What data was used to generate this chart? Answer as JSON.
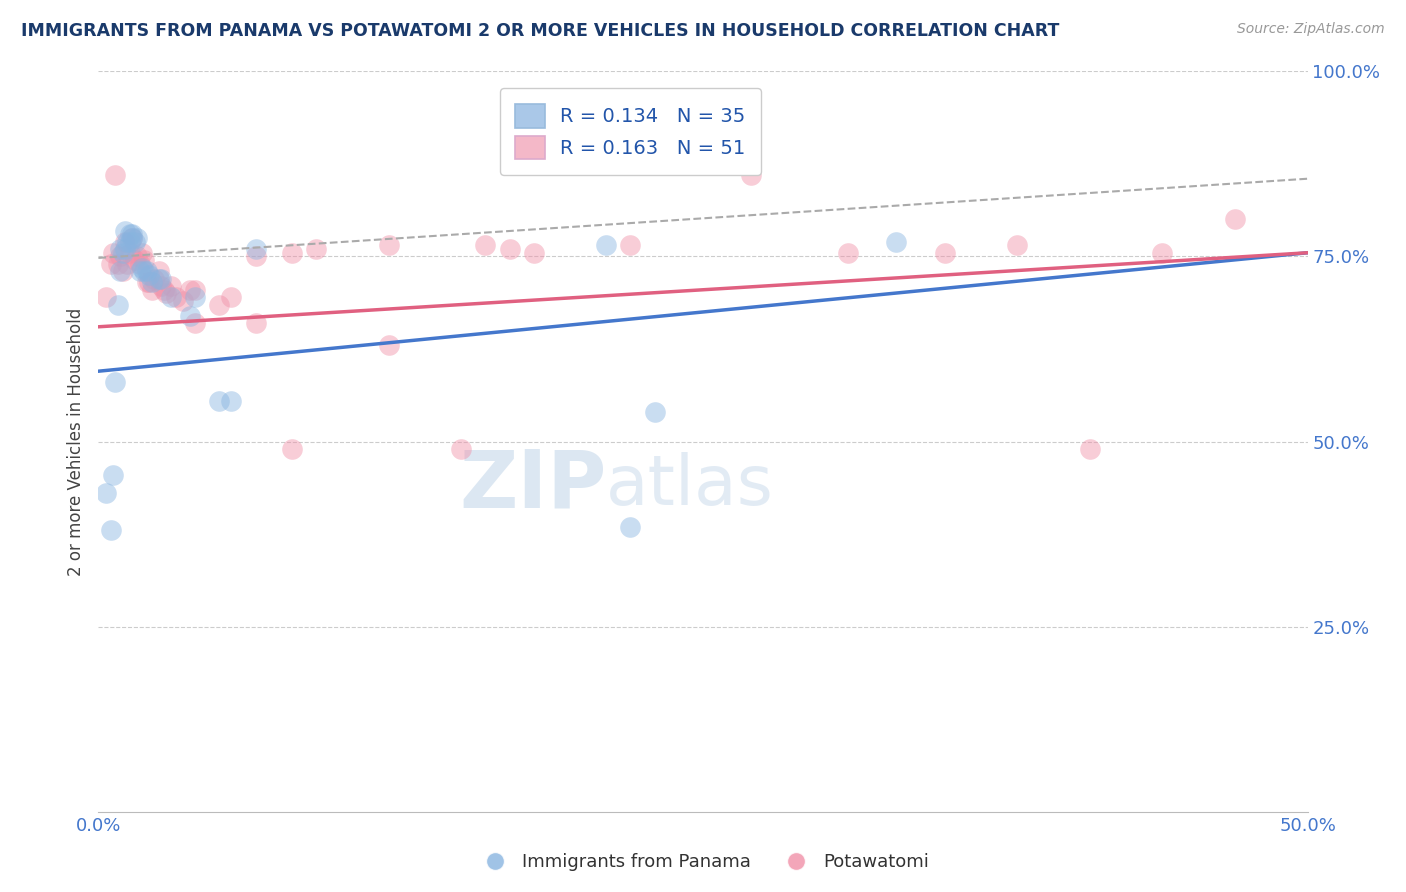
{
  "title": "IMMIGRANTS FROM PANAMA VS POTAWATOMI 2 OR MORE VEHICLES IN HOUSEHOLD CORRELATION CHART",
  "source": "Source: ZipAtlas.com",
  "ylabel": "2 or more Vehicles in Household",
  "xlabel_blue": "Immigrants from Panama",
  "xlabel_pink": "Potawatomi",
  "xlim": [
    0.0,
    0.5
  ],
  "ylim": [
    0.0,
    1.0
  ],
  "xticklabels_pos": [
    0.0,
    0.5
  ],
  "xticklabels": [
    "0.0%",
    "50.0%"
  ],
  "yticks": [
    0.25,
    0.5,
    0.75,
    1.0
  ],
  "yticklabels": [
    "25.0%",
    "50.0%",
    "75.0%",
    "100.0%"
  ],
  "r_blue": 0.134,
  "n_blue": 35,
  "r_pink": 0.163,
  "n_pink": 51,
  "legend_color_blue": "#aac8e8",
  "legend_color_pink": "#f4b8c8",
  "scatter_color_blue": "#88b4e0",
  "scatter_color_pink": "#f090a8",
  "line_color_blue": "#4477cc",
  "line_color_pink": "#e06080",
  "line_color_dash": "#aaaaaa",
  "watermark_zip": "ZIP",
  "watermark_atlas": "atlas",
  "blue_line_x0": 0.0,
  "blue_line_y0": 0.595,
  "blue_line_x1": 0.5,
  "blue_line_y1": 0.755,
  "pink_line_x0": 0.0,
  "pink_line_y0": 0.655,
  "pink_line_x1": 0.5,
  "pink_line_y1": 0.755,
  "dash_line_x0": 0.0,
  "dash_line_y0": 0.748,
  "dash_line_x1": 0.5,
  "dash_line_y1": 0.855,
  "blue_x": [
    0.003,
    0.005,
    0.006,
    0.007,
    0.008,
    0.009,
    0.009,
    0.01,
    0.011,
    0.011,
    0.012,
    0.013,
    0.013,
    0.014,
    0.014,
    0.015,
    0.016,
    0.017,
    0.018,
    0.019,
    0.02,
    0.021,
    0.022,
    0.025,
    0.026,
    0.03,
    0.038,
    0.04,
    0.05,
    0.055,
    0.065,
    0.21,
    0.22,
    0.23,
    0.33
  ],
  "blue_y": [
    0.43,
    0.38,
    0.455,
    0.58,
    0.685,
    0.73,
    0.76,
    0.755,
    0.76,
    0.785,
    0.77,
    0.78,
    0.77,
    0.775,
    0.78,
    0.77,
    0.775,
    0.73,
    0.735,
    0.73,
    0.73,
    0.725,
    0.715,
    0.72,
    0.72,
    0.695,
    0.67,
    0.695,
    0.555,
    0.555,
    0.76,
    0.765,
    0.385,
    0.54,
    0.77
  ],
  "pink_x": [
    0.003,
    0.005,
    0.006,
    0.007,
    0.008,
    0.009,
    0.01,
    0.011,
    0.012,
    0.013,
    0.014,
    0.015,
    0.016,
    0.017,
    0.018,
    0.019,
    0.02,
    0.021,
    0.022,
    0.023,
    0.025,
    0.026,
    0.027,
    0.028,
    0.03,
    0.032,
    0.035,
    0.038,
    0.04,
    0.05,
    0.055,
    0.065,
    0.08,
    0.09,
    0.12,
    0.15,
    0.16,
    0.17,
    0.18,
    0.22,
    0.27,
    0.31,
    0.35,
    0.38,
    0.41,
    0.44,
    0.47,
    0.04,
    0.065,
    0.08,
    0.12
  ],
  "pink_y": [
    0.695,
    0.74,
    0.755,
    0.86,
    0.74,
    0.75,
    0.73,
    0.77,
    0.74,
    0.755,
    0.775,
    0.745,
    0.75,
    0.74,
    0.755,
    0.745,
    0.715,
    0.715,
    0.705,
    0.72,
    0.73,
    0.71,
    0.705,
    0.7,
    0.71,
    0.695,
    0.69,
    0.705,
    0.705,
    0.685,
    0.695,
    0.75,
    0.755,
    0.76,
    0.765,
    0.49,
    0.765,
    0.76,
    0.755,
    0.765,
    0.86,
    0.755,
    0.755,
    0.765,
    0.49,
    0.755,
    0.8,
    0.66,
    0.66,
    0.49,
    0.63
  ]
}
